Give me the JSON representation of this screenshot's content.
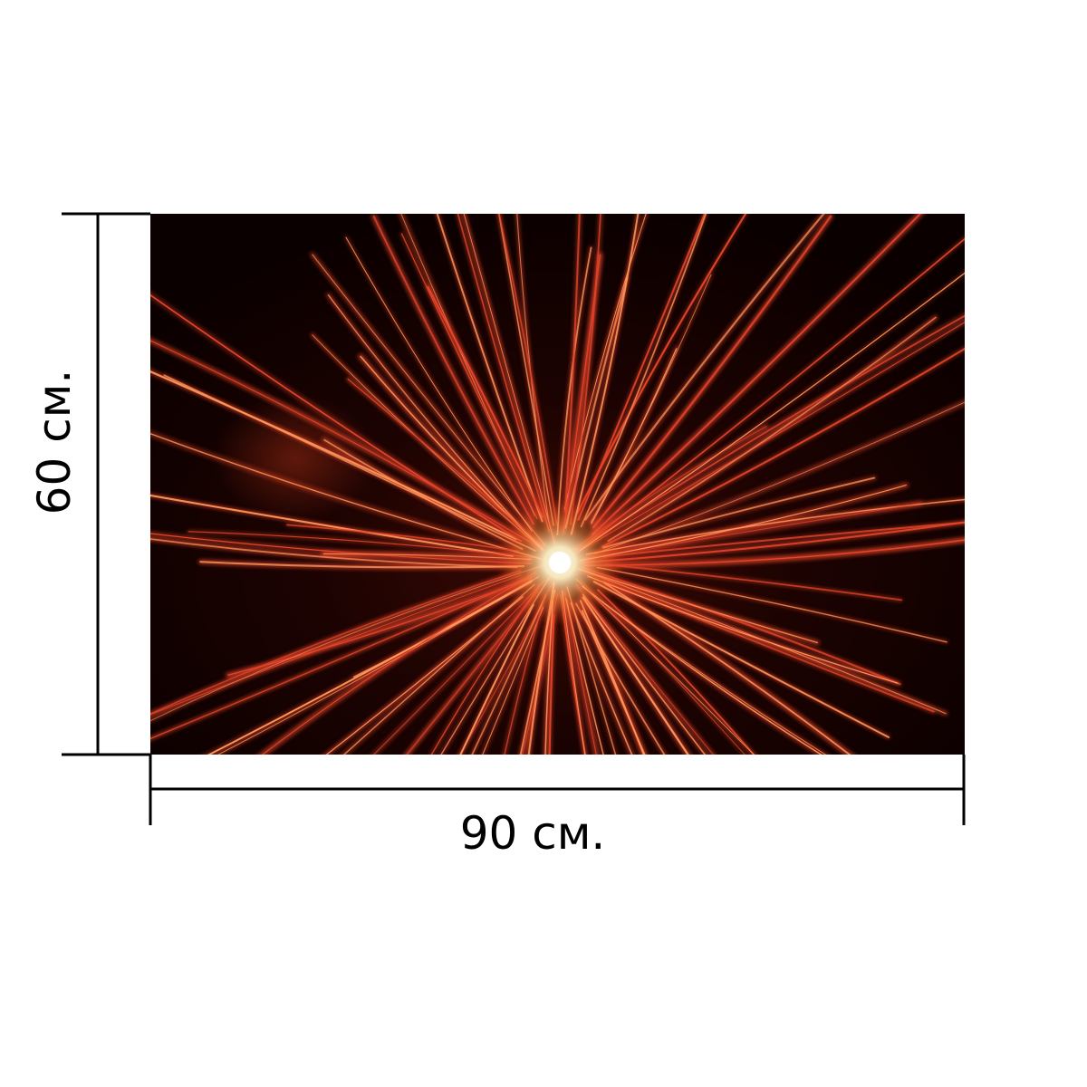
{
  "image": {
    "subject": "firework-burst",
    "colors": {
      "background": "#0e0000",
      "streak_primary": "#e8452a",
      "streak_secondary": "#ff9a5c",
      "core": "#fff6d8"
    }
  },
  "dimensions": {
    "width_label": "90 см.",
    "height_label": "60 см."
  },
  "colors": {
    "page_background": "#ffffff",
    "dimension_lines": "#000000"
  }
}
